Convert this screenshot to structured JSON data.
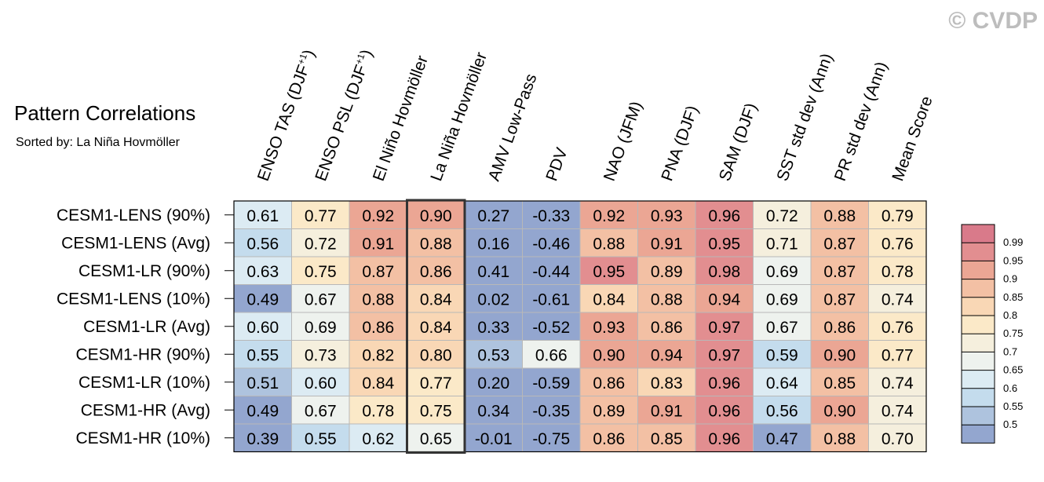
{
  "watermark": "© CVDP",
  "chart_data": {
    "type": "heatmap",
    "title": "Pattern Correlations",
    "subtitle": "Sorted by: La Niña Hovmöller",
    "highlighted_column": "La Niña Hovmöller",
    "columns": [
      {
        "text": "ENSO TAS (DJF",
        "sup": "+1",
        "close": ")"
      },
      {
        "text": "ENSO PSL (DJF",
        "sup": "+1",
        "close": ")"
      },
      {
        "text": "El Niño Hovmöller",
        "sup": "",
        "close": ""
      },
      {
        "text": "La Niña Hovmöller",
        "sup": "",
        "close": ""
      },
      {
        "text": "AMV Low-Pass",
        "sup": "",
        "close": ""
      },
      {
        "text": "PDV",
        "sup": "",
        "close": ""
      },
      {
        "text": "NAO (JFM)",
        "sup": "",
        "close": ""
      },
      {
        "text": "PNA (DJF)",
        "sup": "",
        "close": ""
      },
      {
        "text": "SAM (DJF)",
        "sup": "",
        "close": ""
      },
      {
        "text": "SST std dev (Ann)",
        "sup": "",
        "close": ""
      },
      {
        "text": "PR std dev (Ann)",
        "sup": "",
        "close": ""
      },
      {
        "text": "Mean Score",
        "sup": "",
        "close": ""
      }
    ],
    "rows": [
      "CESM1-LENS (90%)",
      "CESM1-LENS (Avg)",
      "CESM1-LR (90%)",
      "CESM1-LENS (10%)",
      "CESM1-LR (Avg)",
      "CESM1-HR (90%)",
      "CESM1-LR (10%)",
      "CESM1-HR (Avg)",
      "CESM1-HR (10%)"
    ],
    "values": [
      [
        "0.61",
        "0.77",
        "0.92",
        "0.90",
        "0.27",
        "-0.33",
        "0.92",
        "0.93",
        "0.96",
        "0.72",
        "0.88",
        "0.79"
      ],
      [
        "0.56",
        "0.72",
        "0.91",
        "0.88",
        "0.16",
        "-0.46",
        "0.88",
        "0.91",
        "0.95",
        "0.71",
        "0.87",
        "0.76"
      ],
      [
        "0.63",
        "0.75",
        "0.87",
        "0.86",
        "0.41",
        "-0.44",
        "0.95",
        "0.89",
        "0.98",
        "0.69",
        "0.87",
        "0.78"
      ],
      [
        "0.49",
        "0.67",
        "0.88",
        "0.84",
        "0.02",
        "-0.61",
        "0.84",
        "0.88",
        "0.94",
        "0.69",
        "0.87",
        "0.74"
      ],
      [
        "0.60",
        "0.69",
        "0.86",
        "0.84",
        "0.33",
        "-0.52",
        "0.93",
        "0.86",
        "0.97",
        "0.67",
        "0.86",
        "0.76"
      ],
      [
        "0.55",
        "0.73",
        "0.82",
        "0.80",
        "0.53",
        "0.66",
        "0.90",
        "0.94",
        "0.97",
        "0.59",
        "0.90",
        "0.77"
      ],
      [
        "0.51",
        "0.60",
        "0.84",
        "0.77",
        "0.20",
        "-0.59",
        "0.86",
        "0.83",
        "0.96",
        "0.64",
        "0.85",
        "0.74"
      ],
      [
        "0.49",
        "0.67",
        "0.78",
        "0.75",
        "0.34",
        "-0.35",
        "0.89",
        "0.91",
        "0.96",
        "0.56",
        "0.90",
        "0.74"
      ],
      [
        "0.39",
        "0.55",
        "0.62",
        "0.65",
        "-0.01",
        "-0.75",
        "0.86",
        "0.85",
        "0.96",
        "0.47",
        "0.88",
        "0.70"
      ]
    ],
    "colorbar": {
      "labels": [
        "0.99",
        "0.95",
        "0.9",
        "0.85",
        "0.8",
        "0.75",
        "0.7",
        "0.65",
        "0.6",
        "0.55",
        "0.5"
      ],
      "thresholds": [
        0.5,
        0.55,
        0.6,
        0.65,
        0.7,
        0.75,
        0.8,
        0.85,
        0.9,
        0.95,
        0.99
      ],
      "colors": [
        "#93a6cf",
        "#aec3de",
        "#c4dced",
        "#dcebf3",
        "#eef2ee",
        "#f5efdd",
        "#fbe9c8",
        "#f9d7b5",
        "#f3c0a4",
        "#eba694",
        "#e28e90",
        "#d97a8a"
      ]
    }
  }
}
